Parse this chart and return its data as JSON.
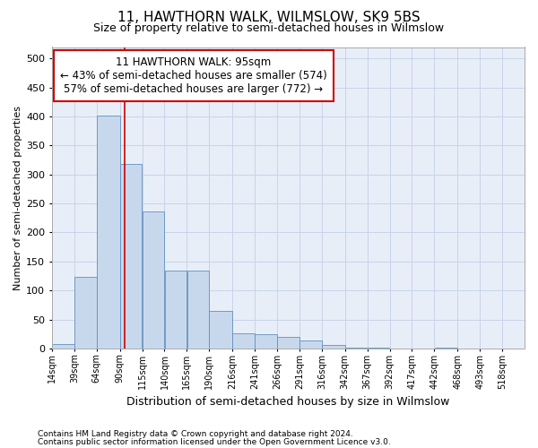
{
  "title": "11, HAWTHORN WALK, WILMSLOW, SK9 5BS",
  "subtitle": "Size of property relative to semi-detached houses in Wilmslow",
  "xlabel": "Distribution of semi-detached houses by size in Wilmslow",
  "ylabel": "Number of semi-detached properties",
  "footnote1": "Contains HM Land Registry data © Crown copyright and database right 2024.",
  "footnote2": "Contains public sector information licensed under the Open Government Licence v3.0.",
  "annotation_title": "11 HAWTHORN WALK: 95sqm",
  "annotation_line1": "← 43% of semi-detached houses are smaller (574)",
  "annotation_line2": "57% of semi-detached houses are larger (772) →",
  "bar_left_edges": [
    14,
    39,
    64,
    90,
    115,
    140,
    165,
    190,
    216,
    241,
    266,
    291,
    316,
    342,
    367,
    392,
    417,
    442,
    468,
    493
  ],
  "bar_widths": [
    25,
    25,
    26,
    25,
    25,
    25,
    25,
    26,
    25,
    25,
    25,
    25,
    26,
    25,
    25,
    25,
    25,
    26,
    25,
    25
  ],
  "bar_heights": [
    7,
    123,
    401,
    318,
    236,
    135,
    135,
    65,
    26,
    24,
    20,
    13,
    6,
    2,
    2,
    0,
    0,
    2,
    0,
    0
  ],
  "bar_color": "#c8d8ec",
  "bar_edge_color": "#6090c0",
  "property_line_x": 95,
  "property_line_color": "#cc0000",
  "ylim": [
    0,
    520
  ],
  "yticks": [
    0,
    50,
    100,
    150,
    200,
    250,
    300,
    350,
    400,
    450,
    500
  ],
  "x_tick_labels": [
    "14sqm",
    "39sqm",
    "64sqm",
    "90sqm",
    "115sqm",
    "140sqm",
    "165sqm",
    "190sqm",
    "216sqm",
    "241sqm",
    "266sqm",
    "291sqm",
    "316sqm",
    "342sqm",
    "367sqm",
    "392sqm",
    "417sqm",
    "442sqm",
    "468sqm",
    "493sqm",
    "518sqm"
  ],
  "annotation_box_color": "#ffffff",
  "annotation_box_edge_color": "#cc0000",
  "grid_color": "#c8d4e8",
  "background_color": "#e8eef8"
}
